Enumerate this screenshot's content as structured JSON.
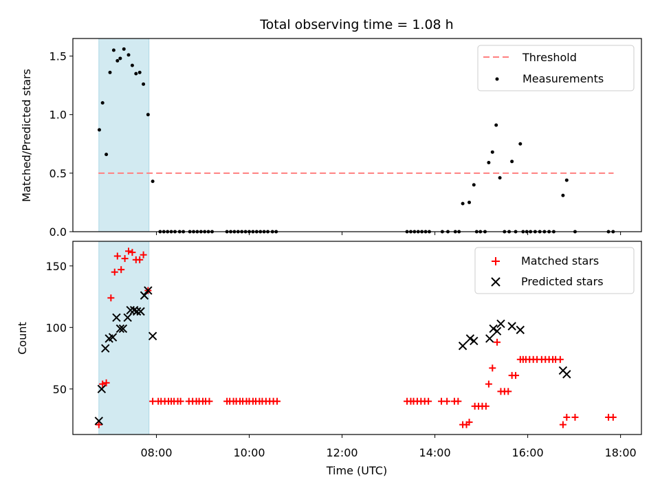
{
  "chart_data": {
    "type": "scatter",
    "title": "Total observing time = 1.08 h",
    "xlabel": "Time (UTC)",
    "x_ticks": [
      "08:00",
      "10:00",
      "12:00",
      "14:00",
      "16:00",
      "18:00"
    ],
    "x_tick_hours": [
      8,
      10,
      12,
      14,
      16,
      18
    ],
    "xlim_hours": [
      6.2,
      18.45
    ],
    "shaded_span_hours": [
      6.76,
      7.84
    ],
    "colors": {
      "shade_fill": "#add8e6",
      "threshold": "#ff7f7f",
      "matched": "#ff0000",
      "predicted": "#000000",
      "measurement": "#000000"
    },
    "panels": [
      {
        "ylabel": "Matched/Predicted stars",
        "ylim": [
          0,
          1.65
        ],
        "y_ticks": [
          0.0,
          0.5,
          1.0,
          1.5
        ],
        "y_tick_labels": [
          "0.0",
          "0.5",
          "1.0",
          "1.5"
        ],
        "threshold": {
          "name": "Threshold",
          "value": 0.5,
          "x_range_hours": [
            6.75,
            17.85
          ]
        },
        "series": [
          {
            "name": "Measurements",
            "marker": "dot",
            "points": [
              [
                6.77,
                0.87
              ],
              [
                6.84,
                1.1
              ],
              [
                6.92,
                0.66
              ],
              [
                7.0,
                1.36
              ],
              [
                7.08,
                1.55
              ],
              [
                7.16,
                1.46
              ],
              [
                7.22,
                1.48
              ],
              [
                7.3,
                1.56
              ],
              [
                7.4,
                1.51
              ],
              [
                7.48,
                1.42
              ],
              [
                7.56,
                1.35
              ],
              [
                7.64,
                1.36
              ],
              [
                7.72,
                1.26
              ],
              [
                7.82,
                1.0
              ],
              [
                7.92,
                0.43
              ],
              [
                8.08,
                0
              ],
              [
                8.16,
                0
              ],
              [
                8.24,
                0
              ],
              [
                8.32,
                0
              ],
              [
                8.4,
                0
              ],
              [
                8.5,
                0
              ],
              [
                8.58,
                0
              ],
              [
                8.72,
                0
              ],
              [
                8.8,
                0
              ],
              [
                8.88,
                0
              ],
              [
                8.96,
                0
              ],
              [
                9.04,
                0
              ],
              [
                9.12,
                0
              ],
              [
                9.2,
                0
              ],
              [
                9.52,
                0
              ],
              [
                9.6,
                0
              ],
              [
                9.68,
                0
              ],
              [
                9.76,
                0
              ],
              [
                9.84,
                0
              ],
              [
                9.92,
                0
              ],
              [
                10.0,
                0
              ],
              [
                10.08,
                0
              ],
              [
                10.16,
                0
              ],
              [
                10.24,
                0
              ],
              [
                10.32,
                0
              ],
              [
                10.4,
                0
              ],
              [
                10.5,
                0
              ],
              [
                10.58,
                0
              ],
              [
                13.4,
                0
              ],
              [
                13.48,
                0
              ],
              [
                13.56,
                0
              ],
              [
                13.64,
                0
              ],
              [
                13.72,
                0
              ],
              [
                13.8,
                0
              ],
              [
                13.88,
                0
              ],
              [
                14.16,
                0
              ],
              [
                14.28,
                0
              ],
              [
                14.44,
                0
              ],
              [
                14.52,
                0
              ],
              [
                14.6,
                0.24
              ],
              [
                14.74,
                0.25
              ],
              [
                14.84,
                0.4
              ],
              [
                14.9,
                0
              ],
              [
                14.98,
                0
              ],
              [
                15.08,
                0
              ],
              [
                15.16,
                0.59
              ],
              [
                15.24,
                0.68
              ],
              [
                15.32,
                0.91
              ],
              [
                15.4,
                0.46
              ],
              [
                15.5,
                0
              ],
              [
                15.6,
                0
              ],
              [
                15.66,
                0.6
              ],
              [
                15.74,
                0
              ],
              [
                15.84,
                0.75
              ],
              [
                15.9,
                0
              ],
              [
                15.98,
                0
              ],
              [
                16.06,
                0
              ],
              [
                16.16,
                0
              ],
              [
                16.26,
                0
              ],
              [
                16.36,
                0
              ],
              [
                16.46,
                0
              ],
              [
                16.56,
                0
              ],
              [
                16.76,
                0.31
              ],
              [
                16.84,
                0.44
              ],
              [
                17.02,
                0
              ],
              [
                17.74,
                0
              ],
              [
                17.84,
                0
              ]
            ]
          }
        ]
      },
      {
        "ylabel": "Count",
        "ylim": [
          13,
          170
        ],
        "y_ticks": [
          50,
          100,
          150
        ],
        "y_tick_labels": [
          "50",
          "100",
          "150"
        ],
        "series": [
          {
            "name": "Matched stars",
            "marker": "plus",
            "points": [
              [
                6.76,
                21
              ],
              [
                6.84,
                54
              ],
              [
                6.92,
                55
              ],
              [
                7.02,
                124
              ],
              [
                7.1,
                145
              ],
              [
                7.16,
                158
              ],
              [
                7.24,
                147
              ],
              [
                7.32,
                156
              ],
              [
                7.4,
                162
              ],
              [
                7.48,
                161
              ],
              [
                7.56,
                155
              ],
              [
                7.64,
                155
              ],
              [
                7.72,
                159
              ],
              [
                7.82,
                130
              ],
              [
                7.92,
                40
              ],
              [
                8.04,
                40
              ],
              [
                8.1,
                40
              ],
              [
                8.18,
                40
              ],
              [
                8.26,
                40
              ],
              [
                8.32,
                40
              ],
              [
                8.38,
                40
              ],
              [
                8.46,
                40
              ],
              [
                8.52,
                40
              ],
              [
                8.7,
                40
              ],
              [
                8.78,
                40
              ],
              [
                8.86,
                40
              ],
              [
                8.92,
                40
              ],
              [
                9.0,
                40
              ],
              [
                9.06,
                40
              ],
              [
                9.14,
                40
              ],
              [
                9.52,
                40
              ],
              [
                9.58,
                40
              ],
              [
                9.66,
                40
              ],
              [
                9.72,
                40
              ],
              [
                9.8,
                40
              ],
              [
                9.86,
                40
              ],
              [
                9.94,
                40
              ],
              [
                10.0,
                40
              ],
              [
                10.08,
                40
              ],
              [
                10.14,
                40
              ],
              [
                10.22,
                40
              ],
              [
                10.28,
                40
              ],
              [
                10.36,
                40
              ],
              [
                10.44,
                40
              ],
              [
                10.52,
                40
              ],
              [
                10.6,
                40
              ],
              [
                13.4,
                40
              ],
              [
                13.48,
                40
              ],
              [
                13.54,
                40
              ],
              [
                13.62,
                40
              ],
              [
                13.7,
                40
              ],
              [
                13.78,
                40
              ],
              [
                13.86,
                40
              ],
              [
                14.14,
                40
              ],
              [
                14.26,
                40
              ],
              [
                14.42,
                40
              ],
              [
                14.5,
                40
              ],
              [
                14.6,
                21
              ],
              [
                14.68,
                21
              ],
              [
                14.74,
                23
              ],
              [
                14.86,
                36
              ],
              [
                14.94,
                36
              ],
              [
                15.02,
                36
              ],
              [
                15.1,
                36
              ],
              [
                15.16,
                54
              ],
              [
                15.24,
                67
              ],
              [
                15.34,
                88
              ],
              [
                15.42,
                48
              ],
              [
                15.5,
                48
              ],
              [
                15.58,
                48
              ],
              [
                15.66,
                61
              ],
              [
                15.74,
                61
              ],
              [
                15.84,
                74
              ],
              [
                15.9,
                74
              ],
              [
                15.96,
                74
              ],
              [
                16.04,
                74
              ],
              [
                16.12,
                74
              ],
              [
                16.2,
                74
              ],
              [
                16.3,
                74
              ],
              [
                16.38,
                74
              ],
              [
                16.46,
                74
              ],
              [
                16.54,
                74
              ],
              [
                16.6,
                74
              ],
              [
                16.7,
                74
              ],
              [
                16.76,
                21
              ],
              [
                16.84,
                27
              ],
              [
                17.02,
                27
              ],
              [
                17.74,
                27
              ],
              [
                17.84,
                27
              ]
            ]
          },
          {
            "name": "Predicted stars",
            "marker": "x",
            "points": [
              [
                6.76,
                24
              ],
              [
                6.82,
                50
              ],
              [
                6.9,
                83
              ],
              [
                6.98,
                91
              ],
              [
                7.06,
                92
              ],
              [
                7.14,
                108
              ],
              [
                7.22,
                99
              ],
              [
                7.28,
                99
              ],
              [
                7.38,
                108
              ],
              [
                7.44,
                114
              ],
              [
                7.52,
                114
              ],
              [
                7.58,
                113
              ],
              [
                7.66,
                113
              ],
              [
                7.74,
                126
              ],
              [
                7.82,
                130
              ],
              [
                7.92,
                93
              ],
              [
                14.6,
                85
              ],
              [
                14.76,
                91
              ],
              [
                14.84,
                89
              ],
              [
                15.18,
                91
              ],
              [
                15.26,
                99
              ],
              [
                15.34,
                97
              ],
              [
                15.42,
                103
              ],
              [
                15.66,
                101
              ],
              [
                15.84,
                98
              ],
              [
                16.76,
                65
              ],
              [
                16.84,
                62
              ]
            ]
          }
        ]
      }
    ]
  }
}
